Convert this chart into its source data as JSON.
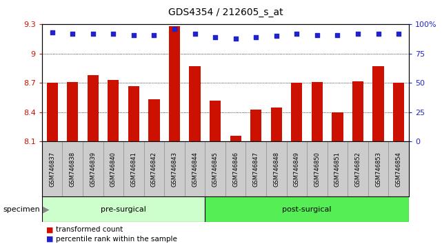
{
  "title": "GDS4354 / 212605_s_at",
  "samples": [
    "GSM746837",
    "GSM746838",
    "GSM746839",
    "GSM746840",
    "GSM746841",
    "GSM746842",
    "GSM746843",
    "GSM746844",
    "GSM746845",
    "GSM746846",
    "GSM746847",
    "GSM746848",
    "GSM746849",
    "GSM746850",
    "GSM746851",
    "GSM746852",
    "GSM746853",
    "GSM746854"
  ],
  "bar_values": [
    8.7,
    8.71,
    8.78,
    8.73,
    8.67,
    8.53,
    9.28,
    8.87,
    8.52,
    8.16,
    8.43,
    8.45,
    8.7,
    8.71,
    8.4,
    8.72,
    8.87,
    8.7
  ],
  "percentile_values": [
    93,
    92,
    92,
    92,
    91,
    91,
    96,
    92,
    89,
    88,
    89,
    90,
    92,
    91,
    91,
    92,
    92,
    92
  ],
  "pre_surgical_count": 8,
  "bar_color": "#cc1100",
  "percentile_color": "#2222cc",
  "ylim_left": [
    8.1,
    9.3
  ],
  "ylim_right": [
    0,
    100
  ],
  "yticks_left": [
    8.1,
    8.4,
    8.7,
    9.0,
    9.3
  ],
  "yticks_right_vals": [
    0,
    25,
    50,
    75,
    100
  ],
  "yticks_right_labels": [
    "0",
    "25",
    "50",
    "75",
    "100%"
  ],
  "yticks_left_labels": [
    "8.1",
    "8.4",
    "8.7",
    "9",
    "9.3"
  ],
  "grid_lines": [
    8.4,
    8.7,
    9.0
  ],
  "group1_label": "pre-surgical",
  "group2_label": "post-surgical",
  "specimen_label": "specimen",
  "legend1": "transformed count",
  "legend2": "percentile rank within the sample",
  "pre_bg": "#ccffcc",
  "post_bg": "#55ee55",
  "label_area_bg": "#cccccc",
  "label_cell_border": "#888888",
  "plot_bg": "#ffffff",
  "bar_area_bg": "#ffffff"
}
